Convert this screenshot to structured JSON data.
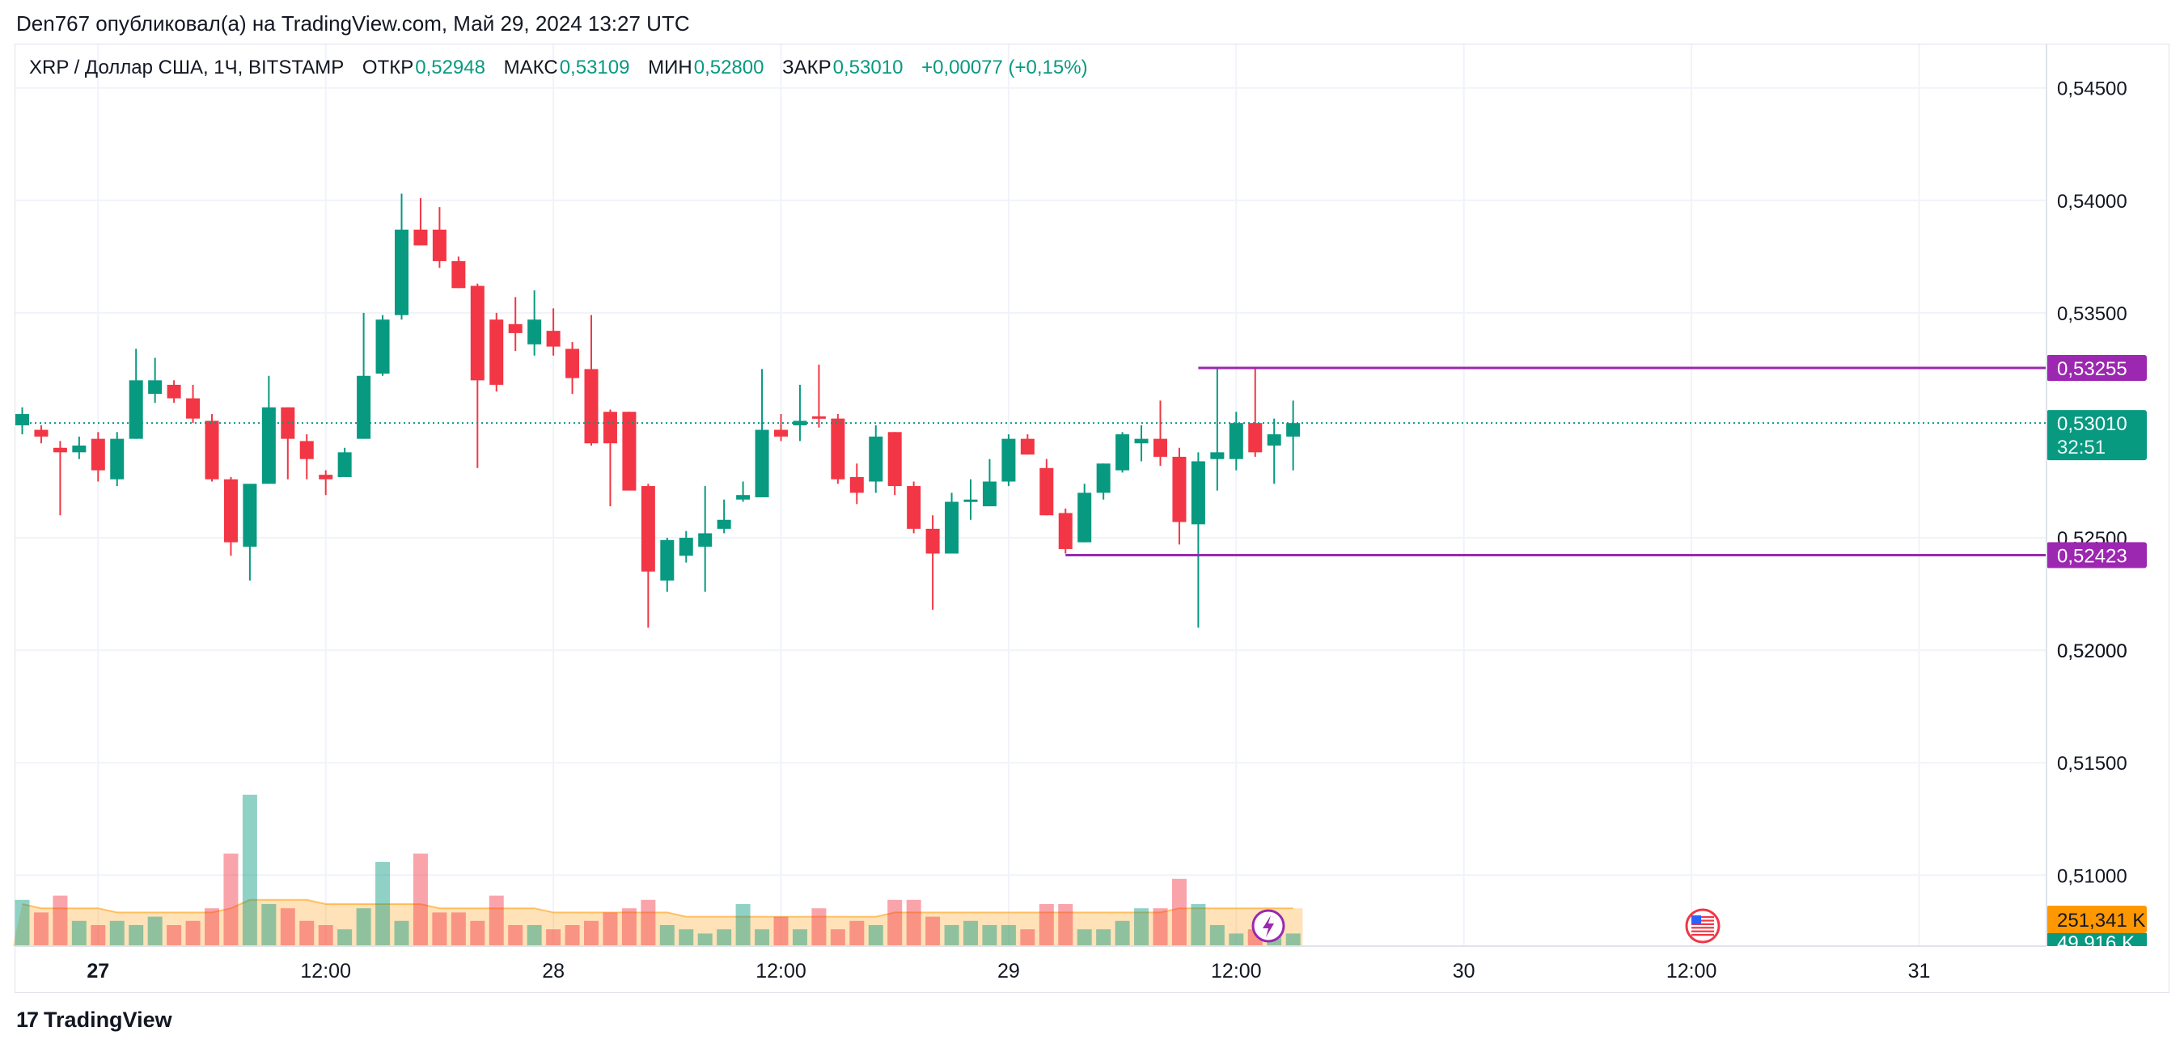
{
  "header": {
    "publisher_line": "Den767 опубликовал(а) на TradingView.com, Май 29, 2024 13:27 UTC"
  },
  "legend": {
    "symbol": "XRP / Доллар США, 1Ч, BITSTAMP",
    "open_label": "ОТКР",
    "open_value": "0,52948",
    "high_label": "МАКС",
    "high_value": "0,53109",
    "low_label": "МИН",
    "low_value": "0,52800",
    "close_label": "ЗАКР",
    "close_value": "0,53010",
    "change": "+0,00077 (+0,15%)"
  },
  "footer": {
    "brand": "TradingView",
    "brand_mark": "17"
  },
  "colors": {
    "up": "#089981",
    "down": "#f23645",
    "level": "#9c27b0",
    "volume_ma": "#ff9800"
  },
  "chart_data": {
    "type": "candlestick",
    "symbol": "XRP / Доллар США",
    "interval": "1Ч",
    "exchange": "BITSTAMP",
    "ylim": [
      0.5185,
      0.5465
    ],
    "price_ticks": [
      "0,54500",
      "0,54000",
      "0,53500",
      "0,52500",
      "0,52000",
      "0,51500",
      "0,51000"
    ],
    "price_tick_values": [
      0.545,
      0.54,
      0.535,
      0.525,
      0.52,
      0.515,
      0.51
    ],
    "x_ticks": [
      "27",
      "12:00",
      "28",
      "12:00",
      "29",
      "12:00",
      "30",
      "12:00",
      "31"
    ],
    "x_tick_index": [
      4,
      16,
      28,
      40,
      52,
      64,
      76,
      88,
      100
    ],
    "x_tick_bold": [
      true,
      false,
      false,
      false,
      false,
      false,
      false,
      false,
      false
    ],
    "first_bar_index": -0.5,
    "bars_per_day": 24,
    "candles": [
      {
        "o": 0.53,
        "h": 0.5308,
        "l": 0.5296,
        "c": 0.5305
      },
      {
        "o": 0.5298,
        "h": 0.53,
        "l": 0.5292,
        "c": 0.5295
      },
      {
        "o": 0.529,
        "h": 0.5293,
        "l": 0.526,
        "c": 0.5288
      },
      {
        "o": 0.5288,
        "h": 0.5295,
        "l": 0.5285,
        "c": 0.5291
      },
      {
        "o": 0.5294,
        "h": 0.5297,
        "l": 0.5275,
        "c": 0.528
      },
      {
        "o": 0.5276,
        "h": 0.5297,
        "l": 0.5273,
        "c": 0.5294
      },
      {
        "o": 0.5294,
        "h": 0.5334,
        "l": 0.5294,
        "c": 0.532
      },
      {
        "o": 0.5314,
        "h": 0.533,
        "l": 0.531,
        "c": 0.532
      },
      {
        "o": 0.5318,
        "h": 0.532,
        "l": 0.531,
        "c": 0.5312
      },
      {
        "o": 0.5312,
        "h": 0.5318,
        "l": 0.5301,
        "c": 0.5303
      },
      {
        "o": 0.5302,
        "h": 0.5305,
        "l": 0.5275,
        "c": 0.5276
      },
      {
        "o": 0.5276,
        "h": 0.5277,
        "l": 0.5242,
        "c": 0.5248
      },
      {
        "o": 0.5246,
        "h": 0.5273,
        "l": 0.5231,
        "c": 0.5274
      },
      {
        "o": 0.5274,
        "h": 0.5322,
        "l": 0.5274,
        "c": 0.5308
      },
      {
        "o": 0.5308,
        "h": 0.5308,
        "l": 0.5276,
        "c": 0.5294
      },
      {
        "o": 0.5293,
        "h": 0.5296,
        "l": 0.5276,
        "c": 0.5285
      },
      {
        "o": 0.5278,
        "h": 0.528,
        "l": 0.5269,
        "c": 0.5276
      },
      {
        "o": 0.5277,
        "h": 0.529,
        "l": 0.5277,
        "c": 0.5288
      },
      {
        "o": 0.5294,
        "h": 0.535,
        "l": 0.5294,
        "c": 0.5322
      },
      {
        "o": 0.5323,
        "h": 0.5349,
        "l": 0.5322,
        "c": 0.5347
      },
      {
        "o": 0.5349,
        "h": 0.5403,
        "l": 0.5347,
        "c": 0.5387
      },
      {
        "o": 0.5387,
        "h": 0.5401,
        "l": 0.538,
        "c": 0.538
      },
      {
        "o": 0.5387,
        "h": 0.5397,
        "l": 0.537,
        "c": 0.5373
      },
      {
        "o": 0.5373,
        "h": 0.5375,
        "l": 0.5361,
        "c": 0.5361
      },
      {
        "o": 0.5362,
        "h": 0.5363,
        "l": 0.5281,
        "c": 0.532
      },
      {
        "o": 0.5347,
        "h": 0.535,
        "l": 0.5315,
        "c": 0.5318
      },
      {
        "o": 0.5345,
        "h": 0.5357,
        "l": 0.5333,
        "c": 0.5341
      },
      {
        "o": 0.5336,
        "h": 0.536,
        "l": 0.5331,
        "c": 0.5347
      },
      {
        "o": 0.5342,
        "h": 0.5352,
        "l": 0.5331,
        "c": 0.5335
      },
      {
        "o": 0.5334,
        "h": 0.5337,
        "l": 0.5314,
        "c": 0.5321
      },
      {
        "o": 0.5325,
        "h": 0.5349,
        "l": 0.5291,
        "c": 0.5292
      },
      {
        "o": 0.5306,
        "h": 0.5307,
        "l": 0.5264,
        "c": 0.5292
      },
      {
        "o": 0.5306,
        "h": 0.5306,
        "l": 0.5271,
        "c": 0.5271
      },
      {
        "o": 0.5273,
        "h": 0.5274,
        "l": 0.521,
        "c": 0.5235
      },
      {
        "o": 0.5231,
        "h": 0.525,
        "l": 0.5226,
        "c": 0.5249
      },
      {
        "o": 0.5242,
        "h": 0.5253,
        "l": 0.5239,
        "c": 0.525
      },
      {
        "o": 0.5246,
        "h": 0.5273,
        "l": 0.5226,
        "c": 0.5252
      },
      {
        "o": 0.5254,
        "h": 0.5267,
        "l": 0.5252,
        "c": 0.5258
      },
      {
        "o": 0.5267,
        "h": 0.5275,
        "l": 0.5266,
        "c": 0.5269
      },
      {
        "o": 0.5268,
        "h": 0.5325,
        "l": 0.5268,
        "c": 0.5298
      },
      {
        "o": 0.5298,
        "h": 0.5305,
        "l": 0.5293,
        "c": 0.5295
      },
      {
        "o": 0.53,
        "h": 0.5318,
        "l": 0.5293,
        "c": 0.5302
      },
      {
        "o": 0.5304,
        "h": 0.5327,
        "l": 0.5299,
        "c": 0.5303
      },
      {
        "o": 0.5303,
        "h": 0.5305,
        "l": 0.5274,
        "c": 0.5276
      },
      {
        "o": 0.5277,
        "h": 0.5283,
        "l": 0.5265,
        "c": 0.527
      },
      {
        "o": 0.5275,
        "h": 0.53,
        "l": 0.527,
        "c": 0.5295
      },
      {
        "o": 0.5297,
        "h": 0.5297,
        "l": 0.5269,
        "c": 0.5273
      },
      {
        "o": 0.5273,
        "h": 0.5275,
        "l": 0.5252,
        "c": 0.5254
      },
      {
        "o": 0.5254,
        "h": 0.526,
        "l": 0.5218,
        "c": 0.5243
      },
      {
        "o": 0.5243,
        "h": 0.527,
        "l": 0.5243,
        "c": 0.5266
      },
      {
        "o": 0.5267,
        "h": 0.5276,
        "l": 0.5258,
        "c": 0.5267
      },
      {
        "o": 0.5264,
        "h": 0.5285,
        "l": 0.5264,
        "c": 0.5275
      },
      {
        "o": 0.5275,
        "h": 0.5296,
        "l": 0.5273,
        "c": 0.5294
      },
      {
        "o": 0.5294,
        "h": 0.5296,
        "l": 0.5287,
        "c": 0.5287
      },
      {
        "o": 0.5281,
        "h": 0.5285,
        "l": 0.526,
        "c": 0.526
      },
      {
        "o": 0.5261,
        "h": 0.5263,
        "l": 0.5243,
        "c": 0.5245
      },
      {
        "o": 0.5248,
        "h": 0.5274,
        "l": 0.5248,
        "c": 0.527
      },
      {
        "o": 0.527,
        "h": 0.5283,
        "l": 0.5267,
        "c": 0.5283
      },
      {
        "o": 0.528,
        "h": 0.5297,
        "l": 0.5279,
        "c": 0.5296
      },
      {
        "o": 0.5292,
        "h": 0.53,
        "l": 0.5284,
        "c": 0.5294
      },
      {
        "o": 0.5294,
        "h": 0.5311,
        "l": 0.5282,
        "c": 0.5286
      },
      {
        "o": 0.5286,
        "h": 0.529,
        "l": 0.5247,
        "c": 0.5257
      },
      {
        "o": 0.5256,
        "h": 0.5288,
        "l": 0.521,
        "c": 0.5284
      },
      {
        "o": 0.5285,
        "h": 0.5325,
        "l": 0.5271,
        "c": 0.5288
      },
      {
        "o": 0.5285,
        "h": 0.5306,
        "l": 0.528,
        "c": 0.5301
      },
      {
        "o": 0.5301,
        "h": 0.5325,
        "l": 0.5286,
        "c": 0.5288
      },
      {
        "o": 0.5291,
        "h": 0.5303,
        "l": 0.5274,
        "c": 0.5296
      },
      {
        "o": 0.5295,
        "h": 0.5311,
        "l": 0.528,
        "c": 0.5301
      }
    ],
    "volume_bars_per_candle": true,
    "volumes": [
      11,
      8,
      12,
      6,
      5,
      6,
      5,
      7,
      5,
      6,
      9,
      22,
      36,
      10,
      9,
      6,
      5,
      4,
      9,
      20,
      6,
      22,
      8,
      8,
      6,
      12,
      5,
      5,
      4,
      5,
      6,
      8,
      9,
      11,
      5,
      4,
      3,
      4,
      10,
      4,
      7,
      4,
      9,
      4,
      6,
      5,
      11,
      11,
      7,
      5,
      6,
      5,
      5,
      4,
      10,
      10,
      4,
      4,
      6,
      9,
      9,
      16,
      10,
      5,
      3,
      4,
      3,
      3
    ],
    "volume_ma": [
      10,
      9,
      9,
      9,
      9,
      8,
      8,
      8,
      8,
      8,
      8,
      9,
      11,
      11,
      11,
      11,
      10,
      10,
      10,
      10,
      10,
      10,
      9,
      9,
      9,
      9,
      9,
      9,
      8,
      8,
      8,
      8,
      8,
      8,
      8,
      7,
      7,
      7,
      7,
      7,
      7,
      7,
      7,
      7,
      7,
      7,
      8,
      8,
      8,
      8,
      8,
      8,
      8,
      8,
      8,
      8,
      8,
      8,
      8,
      8,
      8,
      9,
      9,
      9,
      9,
      9,
      9,
      9
    ],
    "volume_ylim": [
      0,
      38
    ],
    "horizontal_levels": [
      {
        "value": 0.53255,
        "label": "0,53255",
        "from_bar": 62
      },
      {
        "value": 0.52423,
        "label": "0,52423",
        "from_bar": 55
      }
    ],
    "last_price": {
      "value": 0.5301,
      "label": "0,53010",
      "countdown": "32:51"
    },
    "volume_labels": {
      "volume": "251,341 K",
      "volume_ma": "49,916 K"
    }
  }
}
